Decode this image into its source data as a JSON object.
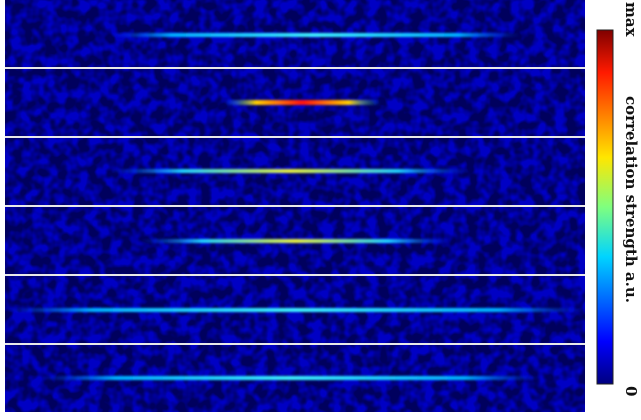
{
  "colorbar": {
    "max_label": "max",
    "title": "correlation strength a.u.",
    "min_label": "0"
  }
}
